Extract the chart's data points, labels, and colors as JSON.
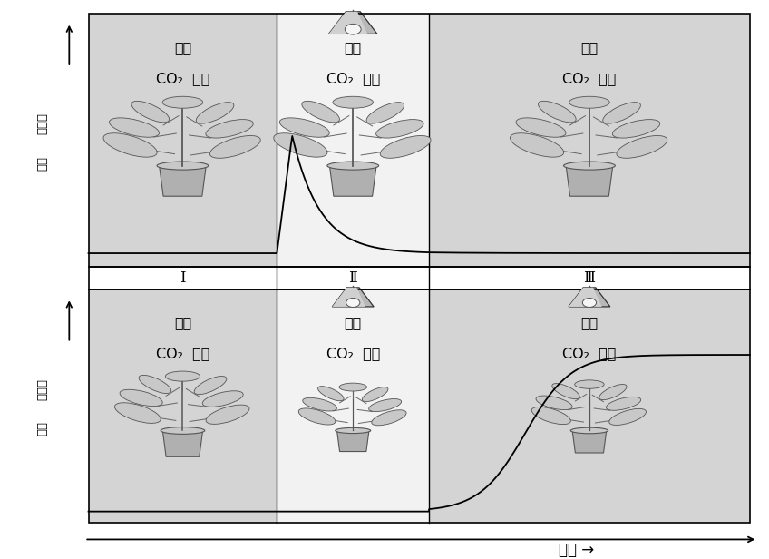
{
  "bg_gray": "#d4d4d4",
  "bg_white": "#f2f2f2",
  "section_boundaries": [
    0.0,
    0.285,
    0.515,
    1.0
  ],
  "roman1": "Ⅰ",
  "roman2": "Ⅱ",
  "roman3": "Ⅲ",
  "top_sec1_line1": "어둠",
  "top_sec1_line2": "CO₂  있음",
  "top_sec2_line1": "밝음",
  "top_sec2_line2": "CO₂  없음",
  "top_sec3_line1": "어둠",
  "top_sec3_line2": "CO₂  있음",
  "bot_sec1_line1": "어둠",
  "bot_sec1_line2": "CO₂  있음",
  "bot_sec2_line1": "밝음",
  "bot_sec2_line2": "CO₂  없음",
  "bot_sec3_line1": "밝음",
  "bot_sec3_line2": "CO₂  있음",
  "x_label": "시간 →",
  "y_label_top1": "광합성",
  "y_label_top2": "속도",
  "figure_width": 8.48,
  "figure_height": 6.16
}
